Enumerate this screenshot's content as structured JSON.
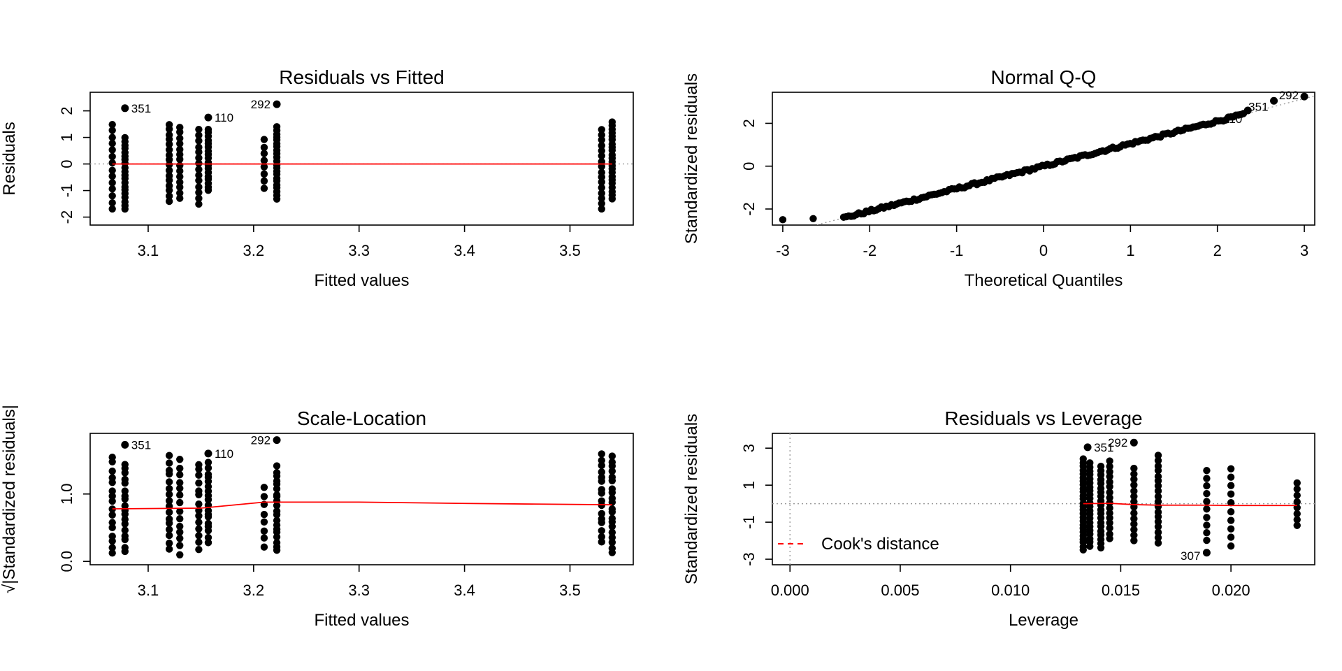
{
  "chart_data": [
    {
      "id": "rvf",
      "type": "scatter",
      "title": "Residuals vs Fitted",
      "xlabel": "Fitted values",
      "ylabel": "Residuals",
      "xlim": [
        3.045,
        3.56
      ],
      "ylim": [
        -2.3,
        2.7
      ],
      "xticks": [
        3.1,
        3.2,
        3.3,
        3.4,
        3.5
      ],
      "xtick_labels": [
        "3.1",
        "3.2",
        "3.3",
        "3.4",
        "3.5"
      ],
      "yticks": [
        -2,
        -1,
        0,
        1,
        2
      ],
      "ytick_labels": [
        "-2",
        "-1",
        "0",
        "1",
        "2"
      ],
      "ytick_rotated": true,
      "reference_line": {
        "kind": "h",
        "y": 0
      },
      "groups": [
        {
          "x": 3.066,
          "ymin": -1.7,
          "ymax": 1.5,
          "n": 14
        },
        {
          "x": 3.078,
          "ymin": -1.7,
          "ymax": 1.0,
          "n": 20
        },
        {
          "x": 3.12,
          "ymin": -1.4,
          "ymax": 1.5,
          "n": 16
        },
        {
          "x": 3.13,
          "ymin": -1.3,
          "ymax": 1.4,
          "n": 14
        },
        {
          "x": 3.148,
          "ymin": -1.5,
          "ymax": 1.3,
          "n": 14
        },
        {
          "x": 3.157,
          "ymin": -1.0,
          "ymax": 1.3,
          "n": 18
        },
        {
          "x": 3.21,
          "ymin": -0.9,
          "ymax": 0.9,
          "n": 8
        },
        {
          "x": 3.222,
          "ymin": -1.3,
          "ymax": 1.4,
          "n": 22
        },
        {
          "x": 3.53,
          "ymin": -1.7,
          "ymax": 1.3,
          "n": 16
        },
        {
          "x": 3.54,
          "ymin": -1.3,
          "ymax": 1.6,
          "n": 22
        }
      ],
      "highlight_points": [
        {
          "x": 3.078,
          "y": 2.1,
          "label": "351"
        },
        {
          "x": 3.157,
          "y": 1.75,
          "label": "110"
        },
        {
          "x": 3.222,
          "y": 2.25,
          "label": "292"
        }
      ],
      "smooth": {
        "x": [
          3.066,
          3.12,
          3.2,
          3.3,
          3.4,
          3.54
        ],
        "y": [
          0,
          0,
          0,
          0,
          0,
          0
        ]
      }
    },
    {
      "id": "qq",
      "type": "scatter",
      "title": "Normal Q-Q",
      "xlabel": "Theoretical Quantiles",
      "ylabel": "Standardized residuals",
      "xlim": [
        -3.12,
        3.12
      ],
      "ylim": [
        -2.75,
        3.45
      ],
      "xticks": [
        -3,
        -2,
        -1,
        0,
        1,
        2,
        3
      ],
      "xtick_labels": [
        "-3",
        "-2",
        "-1",
        "0",
        "1",
        "2",
        "3"
      ],
      "yticks": [
        -2,
        0,
        2
      ],
      "ytick_labels": [
        "-2",
        "0",
        "2"
      ],
      "ytick_rotated": true,
      "reference_line": {
        "kind": "ab",
        "intercept": 0,
        "slope": 1.05
      },
      "n_points": 160,
      "qq_tail_points": [
        {
          "x": -3.0,
          "y": -2.5
        },
        {
          "x": -2.65,
          "y": -2.45
        },
        {
          "x": 2.65,
          "y": 3.05
        },
        {
          "x": 3.0,
          "y": 3.25
        }
      ],
      "highlight_points": [
        {
          "x": 3.0,
          "y": 3.25,
          "label": "292"
        },
        {
          "x": 2.65,
          "y": 3.05,
          "label": "351"
        },
        {
          "x": 2.35,
          "y": 2.6,
          "label": "110"
        }
      ]
    },
    {
      "id": "sl",
      "type": "scatter",
      "title": "Scale-Location",
      "xlabel": "Fitted values",
      "ylabel": "√|Standardized residuals|",
      "xlim": [
        3.045,
        3.56
      ],
      "ylim": [
        -0.05,
        1.9
      ],
      "xticks": [
        3.1,
        3.2,
        3.3,
        3.4,
        3.5
      ],
      "xtick_labels": [
        "3.1",
        "3.2",
        "3.3",
        "3.4",
        "3.5"
      ],
      "yticks": [
        0.0,
        1.0
      ],
      "ytick_labels": [
        "0.0",
        "1.0"
      ],
      "ytick_rotated": true,
      "groups": [
        {
          "x": 3.066,
          "ymin": 0.1,
          "ymax": 1.55,
          "n": 16
        },
        {
          "x": 3.078,
          "ymin": 0.15,
          "ymax": 1.45,
          "n": 18
        },
        {
          "x": 3.12,
          "ymin": 0.2,
          "ymax": 1.55,
          "n": 16
        },
        {
          "x": 3.13,
          "ymin": 0.12,
          "ymax": 1.5,
          "n": 14
        },
        {
          "x": 3.148,
          "ymin": 0.2,
          "ymax": 1.45,
          "n": 14
        },
        {
          "x": 3.157,
          "ymin": 0.3,
          "ymax": 1.45,
          "n": 18
        },
        {
          "x": 3.21,
          "ymin": 0.2,
          "ymax": 1.1,
          "n": 8
        },
        {
          "x": 3.222,
          "ymin": 0.15,
          "ymax": 1.4,
          "n": 20
        },
        {
          "x": 3.53,
          "ymin": 0.3,
          "ymax": 1.6,
          "n": 16
        },
        {
          "x": 3.54,
          "ymin": 0.12,
          "ymax": 1.55,
          "n": 20
        }
      ],
      "highlight_points": [
        {
          "x": 3.078,
          "y": 1.73,
          "label": "351"
        },
        {
          "x": 3.157,
          "y": 1.6,
          "label": "110"
        },
        {
          "x": 3.222,
          "y": 1.8,
          "label": "292"
        }
      ],
      "smooth": {
        "x": [
          3.066,
          3.15,
          3.21,
          3.3,
          3.4,
          3.54
        ],
        "y": [
          0.78,
          0.79,
          0.88,
          0.88,
          0.86,
          0.84
        ]
      }
    },
    {
      "id": "rvl",
      "type": "scatter",
      "title": "Residuals vs Leverage",
      "xlabel": "Leverage",
      "ylabel": "Standardized residuals",
      "xlim": [
        -0.0008,
        0.0238
      ],
      "ylim": [
        -3.3,
        3.8
      ],
      "xticks": [
        0.0,
        0.005,
        0.01,
        0.015,
        0.02
      ],
      "xtick_labels": [
        "0.000",
        "0.005",
        "0.010",
        "0.015",
        "0.020"
      ],
      "yticks": [
        -3,
        -1,
        1,
        3
      ],
      "ytick_labels": [
        "-3",
        "-1",
        "1",
        "3"
      ],
      "ytick_rotated": true,
      "reference_line": {
        "kind": "hv",
        "y": 0,
        "x": 0
      },
      "groups": [
        {
          "x": 0.0133,
          "ymin": -2.5,
          "ymax": 2.4,
          "n": 26
        },
        {
          "x": 0.0136,
          "ymin": -2.3,
          "ymax": 2.2,
          "n": 22
        },
        {
          "x": 0.0141,
          "ymin": -2.4,
          "ymax": 2.0,
          "n": 20
        },
        {
          "x": 0.0145,
          "ymin": -1.9,
          "ymax": 2.3,
          "n": 16
        },
        {
          "x": 0.0156,
          "ymin": -2.0,
          "ymax": 1.9,
          "n": 14
        },
        {
          "x": 0.0167,
          "ymin": -2.1,
          "ymax": 2.6,
          "n": 18
        },
        {
          "x": 0.0189,
          "ymin": -2.0,
          "ymax": 1.8,
          "n": 10
        },
        {
          "x": 0.02,
          "ymin": -2.3,
          "ymax": 1.9,
          "n": 10
        },
        {
          "x": 0.023,
          "ymin": -1.2,
          "ymax": 1.1,
          "n": 8
        }
      ],
      "highlight_points": [
        {
          "x": 0.0135,
          "y": 3.05,
          "label": "351"
        },
        {
          "x": 0.0156,
          "y": 3.3,
          "label": "292"
        },
        {
          "x": 0.0189,
          "y": -2.65,
          "label": "307"
        }
      ],
      "smooth": {
        "x": [
          0.0133,
          0.0145,
          0.0156,
          0.0167,
          0.0189,
          0.02,
          0.023
        ],
        "y": [
          0.0,
          0.02,
          -0.05,
          -0.08,
          -0.08,
          -0.1,
          -0.1
        ]
      },
      "legend": {
        "label": "Cook's distance",
        "placement": "bottom-left"
      }
    }
  ]
}
